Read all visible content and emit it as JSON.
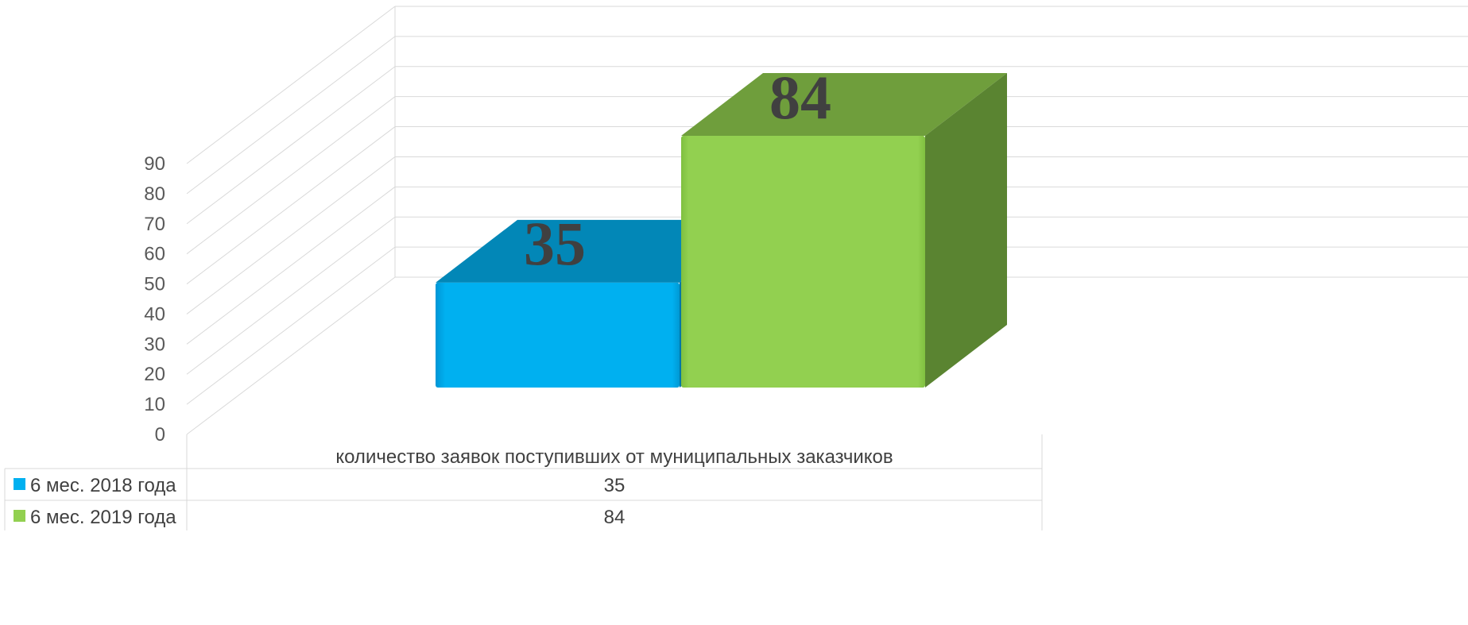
{
  "chart_data": {
    "type": "bar",
    "title": "",
    "xlabel": "",
    "ylabel": "",
    "categories": [
      "количество заявок поступивших от муниципальных заказчиков"
    ],
    "series": [
      {
        "name": "6 мес. 2018 года",
        "values": [
          35
        ],
        "color": "#00B0F0"
      },
      {
        "name": "6 мес. 2019 года",
        "values": [
          84
        ],
        "color": "#92D050"
      }
    ],
    "ylim": [
      0,
      90
    ],
    "yticks": [
      0,
      10,
      20,
      30,
      40,
      50,
      60,
      70,
      80,
      90
    ],
    "grid": true,
    "legend": "data-table",
    "style": "3d-column"
  }
}
